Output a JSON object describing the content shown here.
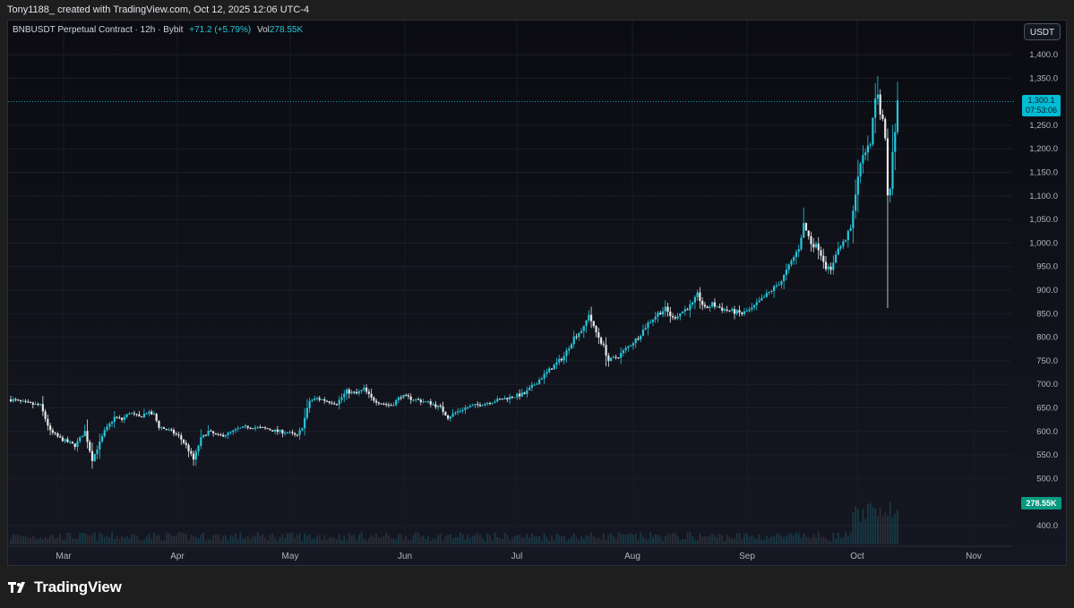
{
  "header": {
    "caption": "Tony1188_ created with TradingView.com, Oct 12, 2025 12:06 UTC-4"
  },
  "legend": {
    "symbol": "BNBUSDT Perpetual Contract · 12h · Bybit",
    "change": "+71.2 (+5.79%)",
    "vol_label": "Vol",
    "vol_value": "278.55K"
  },
  "toolbar": {
    "currency": "USDT"
  },
  "price_tag": {
    "price": "1,300.1",
    "countdown": "07:53:06"
  },
  "volume_tag": "278.55K",
  "footer": {
    "brand": "TradingView"
  },
  "colors": {
    "up": "#26c6da",
    "down": "#e8e8e8",
    "accent": "#00bcd4",
    "volume_badge": "#089981"
  },
  "chart_data": {
    "type": "candlestick",
    "title": "",
    "y_ticks": [
      400,
      500,
      550,
      600,
      650,
      700,
      750,
      800,
      850,
      900,
      950,
      1000,
      1050,
      1100,
      1150,
      1200,
      1250,
      1350,
      1400
    ],
    "y_tick_labels": [
      "400.0",
      "500.0",
      "550.0",
      "600.0",
      "650.0",
      "700.0",
      "750.0",
      "800.0",
      "850.0",
      "900.0",
      "950.0",
      "1,000.0",
      "1,050.0",
      "1,100.0",
      "1,150.0",
      "1,200.0",
      "1,250.0",
      "1,350.0",
      "1,400.0"
    ],
    "ylim": [
      380,
      1430
    ],
    "x_labels": [
      "Mar",
      "Apr",
      "May",
      "Jun",
      "Jul",
      "Aug",
      "Sep",
      "Oct",
      "Nov"
    ],
    "last_price": 1300.1,
    "anchors": [
      [
        0,
        668
      ],
      [
        6,
        660
      ],
      [
        12,
        655
      ],
      [
        16,
        600
      ],
      [
        20,
        585
      ],
      [
        26,
        570
      ],
      [
        30,
        600
      ],
      [
        33,
        540
      ],
      [
        38,
        600
      ],
      [
        42,
        630
      ],
      [
        45,
        625
      ],
      [
        48,
        640
      ],
      [
        52,
        630
      ],
      [
        55,
        640
      ],
      [
        58,
        635
      ],
      [
        60,
        610
      ],
      [
        65,
        600
      ],
      [
        68,
        590
      ],
      [
        71,
        570
      ],
      [
        74,
        540
      ],
      [
        77,
        585
      ],
      [
        80,
        600
      ],
      [
        84,
        590
      ],
      [
        88,
        595
      ],
      [
        92,
        605
      ],
      [
        96,
        610
      ],
      [
        100,
        608
      ],
      [
        104,
        605
      ],
      [
        108,
        600
      ],
      [
        112,
        598
      ],
      [
        116,
        590
      ],
      [
        118,
        610
      ],
      [
        121,
        665
      ],
      [
        124,
        670
      ],
      [
        128,
        665
      ],
      [
        132,
        660
      ],
      [
        136,
        685
      ],
      [
        140,
        680
      ],
      [
        143,
        690
      ],
      [
        146,
        670
      ],
      [
        150,
        660
      ],
      [
        154,
        655
      ],
      [
        158,
        675
      ],
      [
        162,
        670
      ],
      [
        166,
        665
      ],
      [
        170,
        660
      ],
      [
        174,
        650
      ],
      [
        177,
        630
      ],
      [
        180,
        640
      ],
      [
        184,
        650
      ],
      [
        188,
        655
      ],
      [
        192,
        660
      ],
      [
        196,
        665
      ],
      [
        200,
        670
      ],
      [
        204,
        675
      ],
      [
        208,
        680
      ],
      [
        212,
        700
      ],
      [
        216,
        720
      ],
      [
        220,
        740
      ],
      [
        224,
        760
      ],
      [
        228,
        800
      ],
      [
        232,
        820
      ],
      [
        234,
        850
      ],
      [
        236,
        820
      ],
      [
        240,
        780
      ],
      [
        242,
        750
      ],
      [
        246,
        760
      ],
      [
        250,
        780
      ],
      [
        254,
        800
      ],
      [
        258,
        830
      ],
      [
        262,
        850
      ],
      [
        265,
        860
      ],
      [
        268,
        840
      ],
      [
        272,
        855
      ],
      [
        276,
        870
      ],
      [
        278,
        890
      ],
      [
        281,
        860
      ],
      [
        284,
        870
      ],
      [
        288,
        860
      ],
      [
        292,
        855
      ],
      [
        296,
        850
      ],
      [
        300,
        860
      ],
      [
        304,
        880
      ],
      [
        308,
        900
      ],
      [
        312,
        920
      ],
      [
        315,
        950
      ],
      [
        319,
        990
      ],
      [
        321,
        1040
      ],
      [
        324,
        1000
      ],
      [
        327,
        990
      ],
      [
        330,
        950
      ],
      [
        332,
        940
      ],
      [
        334,
        980
      ],
      [
        337,
        1000
      ],
      [
        340,
        1030
      ],
      [
        342,
        1100
      ],
      [
        344,
        1170
      ],
      [
        346,
        1190
      ],
      [
        348,
        1210
      ],
      [
        349,
        1270
      ],
      [
        350,
        1310
      ],
      [
        351,
        1320
      ],
      [
        352,
        1280
      ],
      [
        353,
        1260
      ],
      [
        354,
        1220
      ],
      [
        355,
        1100
      ],
      [
        356,
        1120
      ],
      [
        357,
        1190
      ],
      [
        358,
        1240
      ],
      [
        359,
        1300
      ]
    ],
    "volume_note": "Vol 278.55K"
  }
}
